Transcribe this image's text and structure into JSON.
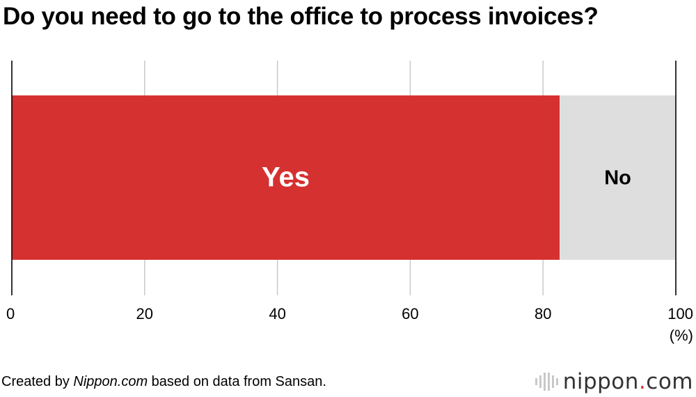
{
  "title": "Do you need to go to the office to process invoices?",
  "chart_data": {
    "type": "bar",
    "orientation": "horizontal",
    "stacked": true,
    "categories": [
      ""
    ],
    "series": [
      {
        "name": "Yes",
        "values": [
          82.5
        ],
        "color": "#d63131",
        "label_color": "#ffffff"
      },
      {
        "name": "No",
        "values": [
          17.5
        ],
        "color": "#dedede",
        "label_color": "#000000"
      }
    ],
    "xlim": [
      0,
      100
    ],
    "xticks": [
      0,
      20,
      40,
      60,
      80,
      100
    ],
    "xunit": "(%)",
    "grid": true
  },
  "footer": {
    "prefix": "Created by ",
    "source": "Nippon.com",
    "suffix": " based on data from Sansan."
  },
  "logo": {
    "text_main": "nippon",
    "text_dot": ".",
    "text_tld": "com",
    "icon": "nippon-logo-icon"
  }
}
